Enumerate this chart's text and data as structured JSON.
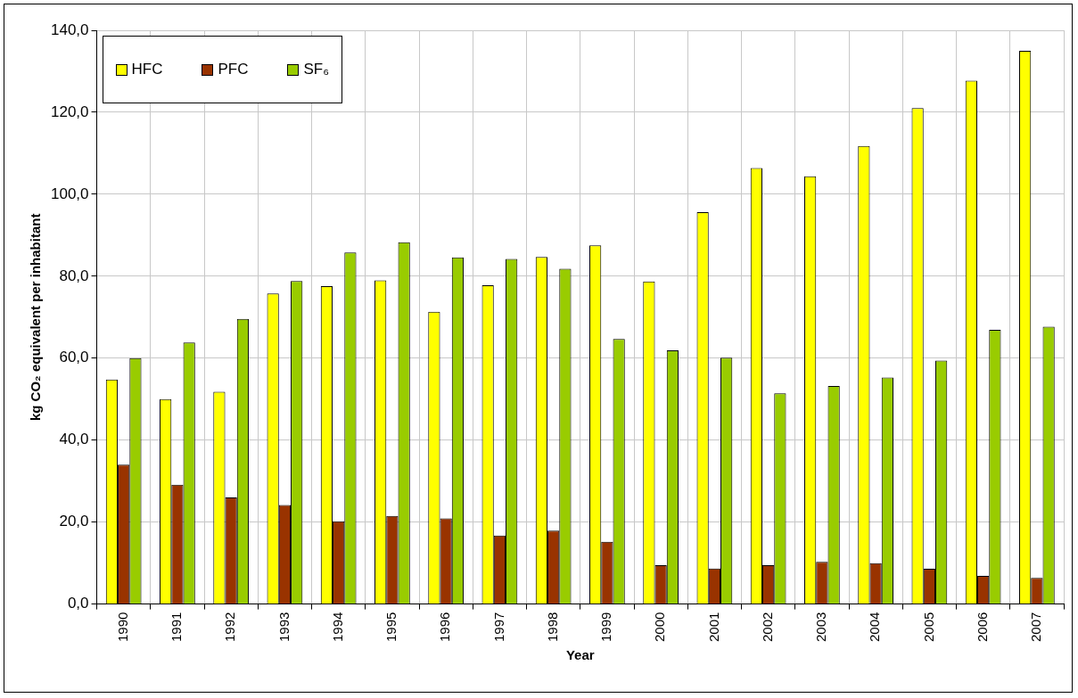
{
  "chart_data": {
    "type": "bar",
    "xlabel": "Year",
    "ylabel": "kg CO₂ equivalent per inhabitant",
    "categories": [
      "1990",
      "1991",
      "1992",
      "1993",
      "1994",
      "1995",
      "1996",
      "1997",
      "1998",
      "1999",
      "2000",
      "2001",
      "2002",
      "2003",
      "2004",
      "2005",
      "2006",
      "2007"
    ],
    "series": [
      {
        "name": "HFC",
        "color": "#ffff00",
        "values": [
          54.8,
          50.0,
          51.8,
          75.8,
          77.6,
          79.0,
          71.3,
          77.8,
          84.7,
          87.5,
          78.7,
          95.6,
          106.4,
          104.4,
          111.8,
          121.0,
          127.7,
          135.0
        ]
      },
      {
        "name": "PFC",
        "color": "#993300",
        "values": [
          34.0,
          29.1,
          26.0,
          24.2,
          20.2,
          21.5,
          20.9,
          16.7,
          17.9,
          15.2,
          9.5,
          8.7,
          9.5,
          10.3,
          10.0,
          8.6,
          6.9,
          6.4
        ]
      },
      {
        "name": "SF₆",
        "color": "#99cc00",
        "values": [
          60.0,
          63.8,
          69.6,
          78.8,
          85.8,
          88.3,
          84.6,
          84.2,
          81.8,
          64.7,
          61.9,
          60.1,
          51.4,
          53.2,
          55.3,
          59.4,
          66.9,
          67.7
        ]
      }
    ],
    "ylim": [
      0,
      140
    ],
    "yticks": [
      {
        "value": 0,
        "label": "0,0"
      },
      {
        "value": 20,
        "label": "20,0"
      },
      {
        "value": 40,
        "label": "40,0"
      },
      {
        "value": 60,
        "label": "60,0"
      },
      {
        "value": 80,
        "label": "80,0"
      },
      {
        "value": 100,
        "label": "100,0"
      },
      {
        "value": 120,
        "label": "120,0"
      },
      {
        "value": 140,
        "label": "140,0"
      }
    ],
    "grid": true,
    "legend": "top left"
  }
}
